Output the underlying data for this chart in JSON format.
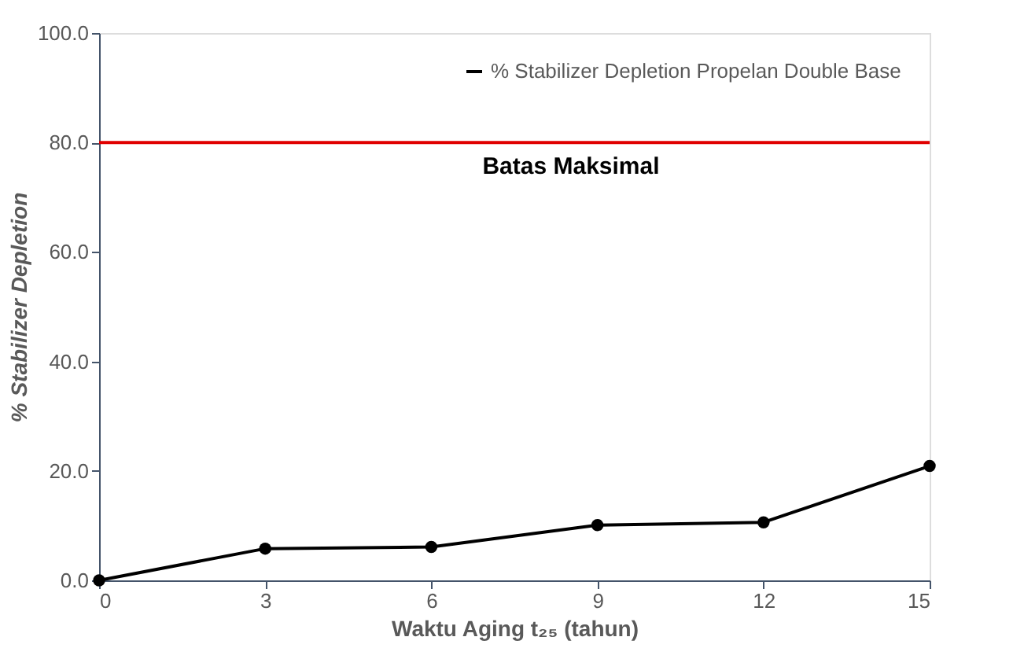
{
  "chart_data": {
    "type": "line",
    "xlabel": "Waktu Aging t₂₅ (tahun)",
    "ylabel": "% Stabilizer Depletion",
    "x": [
      0,
      3,
      6,
      9,
      12,
      15
    ],
    "series": [
      {
        "name": "% Stabilizer Depletion Propelan Double Base",
        "color": "#000000",
        "values": [
          0,
          5.8,
          6.1,
          10.1,
          10.6,
          20.9
        ]
      }
    ],
    "xlim": [
      0,
      15
    ],
    "xticks": [
      0,
      3,
      6,
      9,
      12,
      15
    ],
    "ylim": [
      0,
      100
    ],
    "yticks": [
      {
        "value": 0,
        "label": "0.0"
      },
      {
        "value": 20,
        "label": "20.0"
      },
      {
        "value": 40,
        "label": "40.0"
      },
      {
        "value": 60,
        "label": "60.0"
      },
      {
        "value": 80,
        "label": "80.0"
      },
      {
        "value": 100,
        "label": "100.0"
      }
    ],
    "ref_lines": [
      {
        "axis": "y",
        "value": 80,
        "label": "Batas Maksimal",
        "color": "#e00000"
      }
    ],
    "marker": "circle",
    "line_style": "solid",
    "grid": false,
    "legend": "top right"
  }
}
